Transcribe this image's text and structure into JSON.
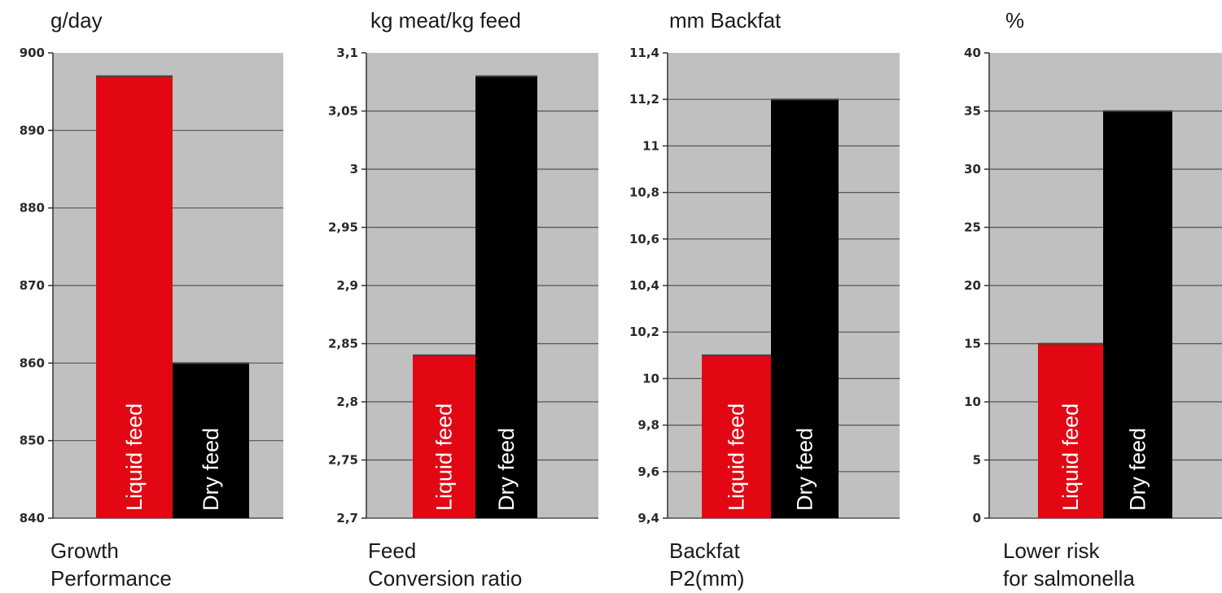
{
  "chart_data": [
    {
      "type": "bar",
      "unit_label": "g/day",
      "caption_lines": [
        "Growth",
        "Performance"
      ],
      "categories": [
        "Liquid feed",
        "Dry feed"
      ],
      "values": [
        897,
        860
      ],
      "colors": [
        "#e30613",
        "#000000"
      ],
      "ylim": [
        840,
        900
      ],
      "yticks": [
        840,
        850,
        860,
        870,
        880,
        890,
        900
      ],
      "ytick_labels": [
        "840",
        "850",
        "860",
        "870",
        "880",
        "890",
        "900"
      ],
      "grid": true
    },
    {
      "type": "bar",
      "unit_label": "kg meat/kg feed",
      "caption_lines": [
        "Feed",
        "Conversion ratio"
      ],
      "categories": [
        "Liquid feed",
        "Dry feed"
      ],
      "values": [
        2.84,
        3.08
      ],
      "colors": [
        "#e30613",
        "#000000"
      ],
      "ylim": [
        2.7,
        3.1
      ],
      "yticks": [
        2.7,
        2.75,
        2.8,
        2.85,
        2.9,
        2.95,
        3.0,
        3.05,
        3.1
      ],
      "ytick_labels": [
        "2,7",
        "2,75",
        "2,8",
        "2,85",
        "2,9",
        "2,95",
        "3",
        "3,05",
        "3,1"
      ],
      "grid": true
    },
    {
      "type": "bar",
      "unit_label": "mm Backfat",
      "caption_lines": [
        "Backfat",
        "P2(mm)"
      ],
      "categories": [
        "Liquid feed",
        "Dry feed"
      ],
      "values": [
        10.1,
        11.2
      ],
      "colors": [
        "#e30613",
        "#000000"
      ],
      "ylim": [
        9.4,
        11.4
      ],
      "yticks": [
        9.4,
        9.6,
        9.8,
        10.0,
        10.2,
        10.4,
        10.6,
        10.8,
        11.0,
        11.2,
        11.4
      ],
      "ytick_labels": [
        "9,4",
        "9,6",
        "9,8",
        "10",
        "10,2",
        "10,4",
        "10,6",
        "10,8",
        "11",
        "11,2",
        "11,4"
      ],
      "grid": true
    },
    {
      "type": "bar",
      "unit_label": "%",
      "caption_lines": [
        "Lower risk",
        "for salmonella"
      ],
      "categories": [
        "Liquid feed",
        "Dry feed"
      ],
      "values": [
        15,
        35
      ],
      "colors": [
        "#e30613",
        "#000000"
      ],
      "ylim": [
        0,
        40
      ],
      "yticks": [
        0,
        5,
        10,
        15,
        20,
        25,
        30,
        35,
        40
      ],
      "ytick_labels": [
        "0",
        "5",
        "10",
        "15",
        "20",
        "25",
        "30",
        "35",
        "40"
      ],
      "grid": true
    }
  ]
}
